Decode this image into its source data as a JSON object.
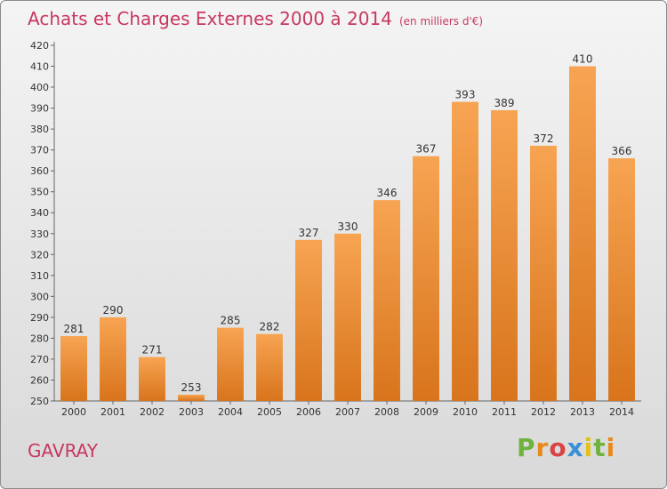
{
  "chart_data": {
    "type": "bar",
    "title": "Achats et Charges Externes 2000 à 2014",
    "subtitle": "(en milliers d'€)",
    "xlabel": "",
    "ylabel": "",
    "categories": [
      "2000",
      "2001",
      "2002",
      "2003",
      "2004",
      "2005",
      "2006",
      "2007",
      "2008",
      "2009",
      "2010",
      "2011",
      "2012",
      "2013",
      "2014"
    ],
    "values": [
      281,
      290,
      271,
      253,
      285,
      282,
      327,
      330,
      346,
      367,
      393,
      389,
      372,
      410,
      366
    ],
    "ylim": [
      250,
      420
    ],
    "ytick_step": 10,
    "grid": false,
    "legend": "none",
    "bar_color_top": "#f7a452",
    "bar_color_bottom": "#d8741c"
  },
  "footer": {
    "location": "GAVRAY",
    "logo_text": "Proxiti",
    "logo_colors": [
      "#6fb33e",
      "#e88a1a",
      "#d94545",
      "#3b8fd8",
      "#e0c319",
      "#6fb33e",
      "#e88a1a"
    ]
  },
  "colors": {
    "title": "#c8385f",
    "axis": "#555555",
    "text": "#333333"
  }
}
